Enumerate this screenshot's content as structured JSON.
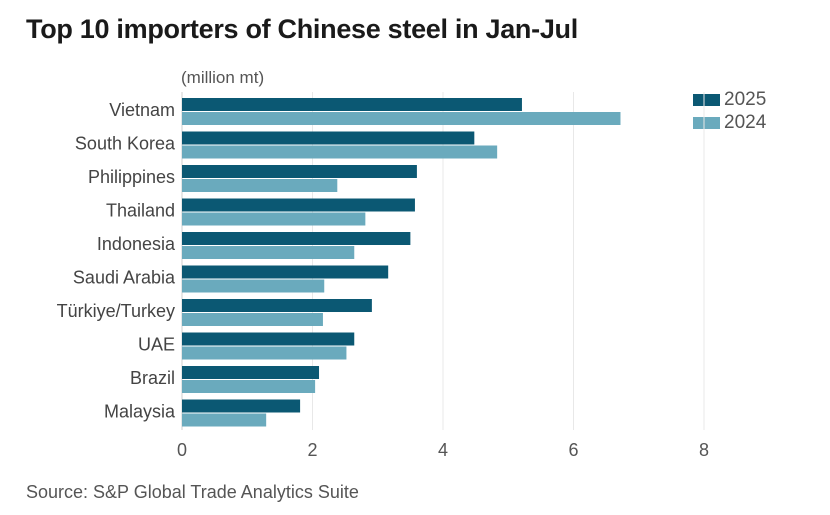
{
  "chart_data": {
    "type": "bar",
    "orientation": "horizontal",
    "title": "Top 10 importers of Chinese steel in Jan-Jul",
    "unit_label": "(million mt)",
    "xlabel": "",
    "ylabel": "",
    "xlim": [
      0,
      8
    ],
    "xticks": [
      0,
      2,
      4,
      6,
      8
    ],
    "grid": true,
    "legend_position": "top-right",
    "categories": [
      "Vietnam",
      "South Korea",
      "Philippines",
      "Thailand",
      "Indonesia",
      "Saudi Arabia",
      "Türkiye/Turkey",
      "UAE",
      "Brazil",
      "Malaysia"
    ],
    "series": [
      {
        "name": "2025",
        "color": "#0b5873",
        "values": [
          5.21,
          4.48,
          3.6,
          3.57,
          3.5,
          3.16,
          2.91,
          2.64,
          2.1,
          1.81
        ]
      },
      {
        "name": "2024",
        "color": "#6aaabd",
        "values": [
          6.72,
          4.83,
          2.38,
          2.81,
          2.64,
          2.18,
          2.16,
          2.52,
          2.04,
          1.29
        ]
      }
    ],
    "source": "Source: S&P Global Trade Analytics Suite"
  }
}
